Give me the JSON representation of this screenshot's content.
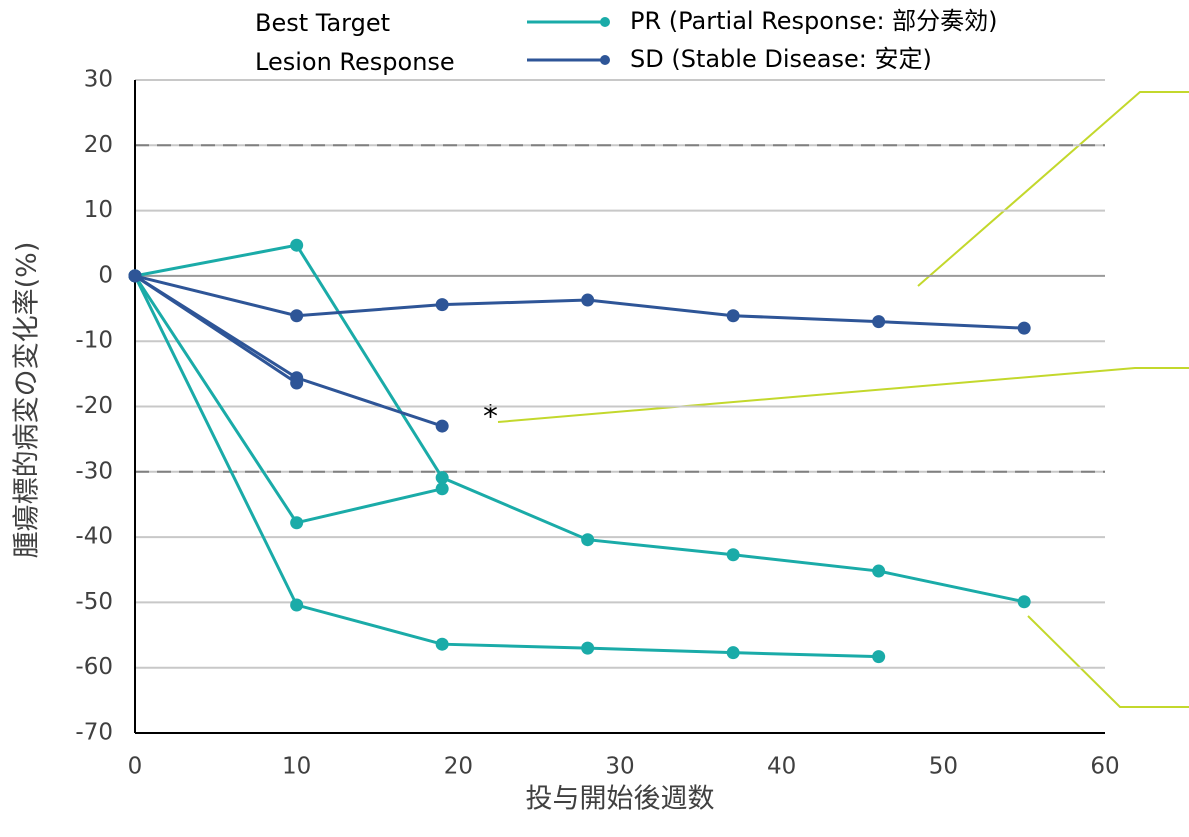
{
  "chart_data": {
    "type": "line",
    "legend_title": [
      "Best Target",
      "Lesion Response"
    ],
    "xlabel": "投与開始後週数",
    "ylabel": "腫瘍標的病変の変化率(%)",
    "annotation": "*",
    "xlim": [
      0,
      60
    ],
    "xticks": [
      0,
      10,
      20,
      30,
      40,
      50,
      60
    ],
    "ylim": [
      -70,
      30
    ],
    "yticks": [
      -70,
      -60,
      -50,
      -40,
      -30,
      -20,
      -10,
      0,
      10,
      20,
      30
    ],
    "dashed_lines": [
      20,
      -30
    ],
    "grid": true,
    "series": [
      {
        "name": "PR (Partial Response: 部分奏効)",
        "color": "#1aaba8",
        "lines": [
          {
            "x": [
              0,
              10,
              19,
              28,
              37,
              46,
              55
            ],
            "values": [
              0,
              4.7,
              -30.9,
              -40.4,
              -42.7,
              -45.2,
              -49.9
            ]
          },
          {
            "x": [
              0,
              10,
              19
            ],
            "values": [
              0,
              -37.8,
              -32.6
            ]
          },
          {
            "x": [
              0,
              10,
              19,
              28,
              37,
              46
            ],
            "values": [
              0,
              -50.4,
              -56.4,
              -57.0,
              -57.7,
              -58.3
            ]
          }
        ]
      },
      {
        "name": "SD (Stable Disease: 安定)",
        "color": "#2e5597",
        "lines": [
          {
            "x": [
              0,
              10,
              19,
              28,
              37,
              46,
              55
            ],
            "values": [
              0,
              -6.1,
              -4.4,
              -3.7,
              -6.1,
              -7.0,
              -8.0
            ]
          },
          {
            "x": [
              0,
              10,
              19
            ],
            "values": [
              0,
              -15.6,
              -23.0
            ]
          },
          {
            "x": [
              0,
              10
            ],
            "values": [
              0,
              -16.4
            ]
          }
        ]
      }
    ]
  }
}
